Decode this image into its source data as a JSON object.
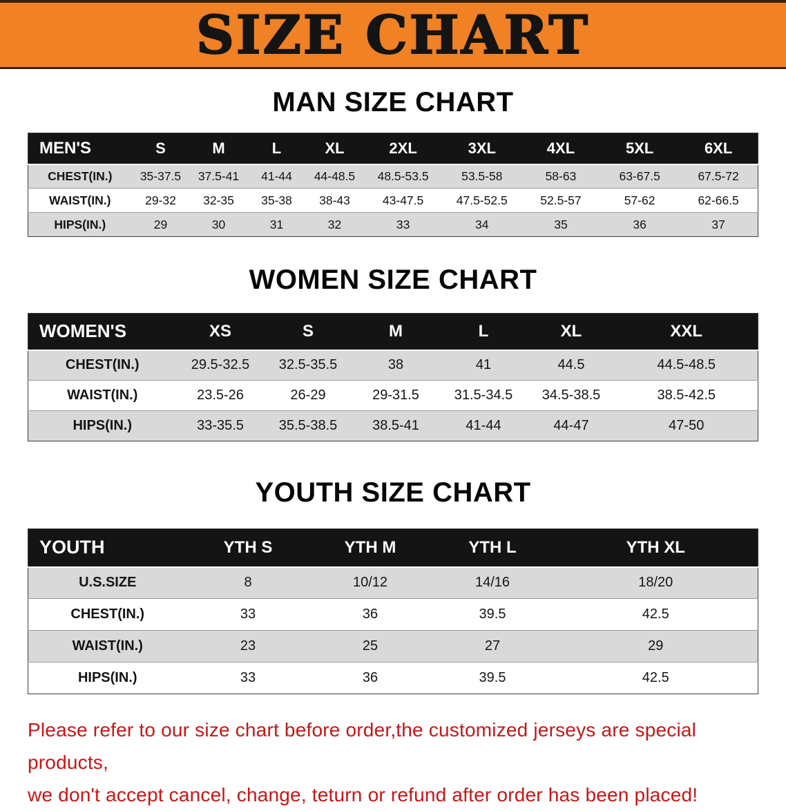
{
  "banner": {
    "title": "SIZE CHART"
  },
  "colors": {
    "banner_bg": "#f08125",
    "header_bg": "#141414",
    "row_alt_bg": "#d9d9d9",
    "disclaimer_color": "#cc1414"
  },
  "sections": [
    {
      "heading": "MAN SIZE CHART",
      "table": {
        "header": [
          "MEN'S",
          "S",
          "M",
          "L",
          "XL",
          "2XL",
          "3XL",
          "4XL",
          "5XL",
          "6XL"
        ],
        "rows": [
          [
            "CHEST(IN.)",
            "35-37.5",
            "37.5-41",
            "41-44",
            "44-48.5",
            "48.5-53.5",
            "53.5-58",
            "58-63",
            "63-67.5",
            "67.5-72"
          ],
          [
            "WAIST(IN.)",
            "29-32",
            "32-35",
            "35-38",
            "38-43",
            "43-47.5",
            "47.5-52.5",
            "52.5-57",
            "57-62",
            "62-66.5"
          ],
          [
            "HIPS(IN.)",
            "29",
            "30",
            "31",
            "32",
            "33",
            "34",
            "35",
            "36",
            "37"
          ]
        ]
      }
    },
    {
      "heading": "WOMEN SIZE CHART",
      "table": {
        "header": [
          "WOMEN'S",
          "XS",
          "S",
          "M",
          "L",
          "XL",
          "XXL"
        ],
        "rows": [
          [
            "CHEST(IN.)",
            "29.5-32.5",
            "32.5-35.5",
            "38",
            "41",
            "44.5",
            "44.5-48.5"
          ],
          [
            "WAIST(IN.)",
            "23.5-26",
            "26-29",
            "29-31.5",
            "31.5-34.5",
            "34.5-38.5",
            "38.5-42.5"
          ],
          [
            "HIPS(IN.)",
            "33-35.5",
            "35.5-38.5",
            "38.5-41",
            "41-44",
            "44-47",
            "47-50"
          ]
        ]
      }
    },
    {
      "heading": "YOUTH SIZE CHART",
      "table": {
        "header": [
          "YOUTH",
          "YTH S",
          "YTH M",
          "YTH L",
          "YTH XL"
        ],
        "rows": [
          [
            "U.S.SIZE",
            "8",
            "10/12",
            "14/16",
            "18/20"
          ],
          [
            "CHEST(IN.)",
            "33",
            "36",
            "39.5",
            "42.5"
          ],
          [
            "WAIST(IN.)",
            "23",
            "25",
            "27",
            "29"
          ],
          [
            "HIPS(IN.)",
            "33",
            "36",
            "39.5",
            "42.5"
          ]
        ]
      }
    }
  ],
  "disclaimer": {
    "line1": "Please refer to our size chart before order,the customized jerseys are special products,",
    "line2": "we don't accept cancel, change, teturn or refund after order has been placed!"
  }
}
